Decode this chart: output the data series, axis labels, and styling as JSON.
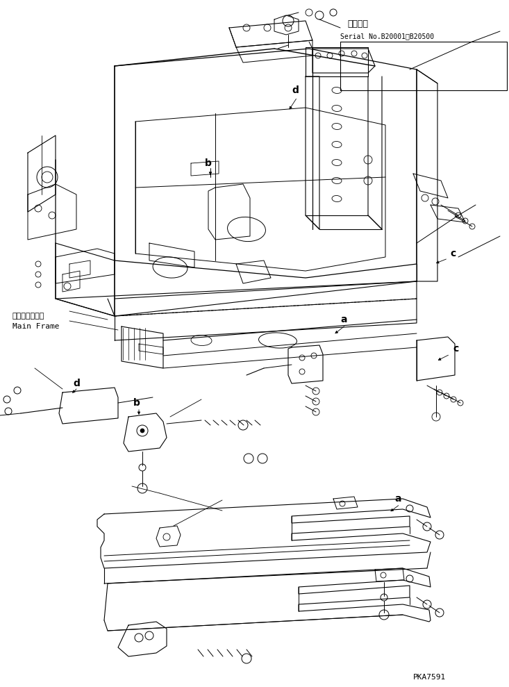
{
  "bg_color": "#ffffff",
  "line_color": "#000000",
  "fig_width": 7.33,
  "fig_height": 9.89,
  "dpi": 100,
  "title_jp": "適用号機",
  "title_serial": "Serial No.B20001～B20500",
  "label_main_frame_jp": "メインフレーム",
  "label_main_frame_en": "Main Frame",
  "watermark": "PKA7591",
  "label_a": "a",
  "label_b": "b",
  "label_c": "c",
  "label_d": "d"
}
